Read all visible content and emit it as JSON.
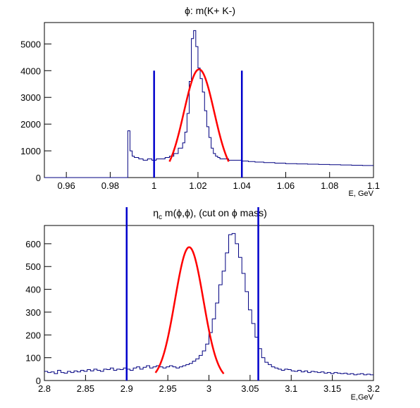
{
  "chart_data": [
    {
      "type": "histogram",
      "title": "ϕ: m(K+ K-)",
      "xlabel": "E, GeV",
      "ylabel": "",
      "xlim": [
        0.95,
        1.1
      ],
      "ylim": [
        0,
        5800
      ],
      "x_ticks": [
        0.96,
        0.98,
        1.0,
        1.02,
        1.04,
        1.06,
        1.08,
        1.1
      ],
      "x_tick_labels": [
        "0.96",
        "0.98",
        "1",
        "1.02",
        "1.04",
        "1.06",
        "1.08",
        "1.1"
      ],
      "y_ticks": [
        0,
        1000,
        2000,
        3000,
        4000,
        5000
      ],
      "y_tick_labels": [
        "0",
        "1000",
        "2000",
        "3000",
        "4000",
        "5000"
      ],
      "histogram_color": "#000080",
      "histogram": {
        "bin_edges": [
          0.95,
          0.988,
          0.989,
          0.99,
          0.991,
          0.993,
          0.995,
          0.997,
          0.999,
          1.001,
          1.003,
          1.005,
          1.007,
          1.009,
          1.011,
          1.013,
          1.014,
          1.015,
          1.016,
          1.017,
          1.018,
          1.019,
          1.02,
          1.021,
          1.022,
          1.023,
          1.024,
          1.025,
          1.026,
          1.027,
          1.028,
          1.029,
          1.03,
          1.032,
          1.034,
          1.036,
          1.038,
          1.04,
          1.043,
          1.046,
          1.05,
          1.055,
          1.06,
          1.065,
          1.07,
          1.075,
          1.08,
          1.085,
          1.09,
          1.095,
          1.1
        ],
        "counts": [
          0,
          1750,
          1000,
          800,
          750,
          700,
          650,
          700,
          650,
          700,
          700,
          750,
          800,
          900,
          1100,
          1300,
          1700,
          2400,
          3600,
          5200,
          5500,
          4900,
          4100,
          3700,
          3200,
          2500,
          1900,
          1500,
          1100,
          900,
          800,
          750,
          700,
          700,
          650,
          650,
          650,
          620,
          600,
          580,
          560,
          540,
          520,
          510,
          500,
          490,
          480,
          470,
          460,
          450
        ]
      },
      "fit": {
        "type": "gaussian",
        "color": "#ff0000",
        "amplitude": 4050,
        "mean": 1.0205,
        "sigma": 0.0069,
        "x_range": [
          1.007,
          1.034
        ]
      },
      "cut_lines": {
        "color": "#0000cc",
        "x": [
          1.0,
          1.04
        ],
        "y_top": 4000
      }
    },
    {
      "type": "histogram",
      "title_parts": {
        "eta": "η",
        "sub": "c",
        "rest": " m(ϕ,ϕ), (cut on ϕ mass)"
      },
      "xlabel": "E,GeV",
      "ylabel": "",
      "xlim": [
        2.8,
        3.2
      ],
      "ylim": [
        0,
        680
      ],
      "x_ticks": [
        2.8,
        2.85,
        2.9,
        2.95,
        3.0,
        3.05,
        3.1,
        3.15,
        3.2
      ],
      "x_tick_labels": [
        "2.8",
        "2.85",
        "2.9",
        "2.95",
        "3",
        "3.05",
        "3.1",
        "3.15",
        "3.2"
      ],
      "y_ticks": [
        0,
        100,
        200,
        300,
        400,
        500,
        600
      ],
      "y_tick_labels": [
        "0",
        "100",
        "200",
        "300",
        "400",
        "500",
        "600"
      ],
      "histogram_color": "#000080",
      "histogram": {
        "bin_start": 2.8,
        "bin_width": 0.004,
        "counts": [
          40,
          35,
          38,
          30,
          45,
          35,
          32,
          40,
          35,
          42,
          38,
          45,
          40,
          48,
          42,
          50,
          45,
          40,
          50,
          48,
          55,
          45,
          50,
          48,
          55,
          50,
          45,
          55,
          60,
          50,
          58,
          65,
          55,
          60,
          65,
          60,
          55,
          60,
          65,
          60,
          55,
          60,
          65,
          70,
          75,
          85,
          95,
          110,
          130,
          160,
          210,
          270,
          340,
          420,
          480,
          560,
          640,
          645,
          600,
          540,
          470,
          390,
          310,
          250,
          190,
          140,
          100,
          80,
          70,
          60,
          55,
          50,
          45,
          50,
          48,
          42,
          40,
          45,
          38,
          42,
          35,
          40,
          38,
          35,
          38,
          32,
          35,
          30,
          35,
          32,
          30,
          32,
          28,
          30,
          25,
          28,
          30,
          25,
          28,
          25
        ]
      },
      "fit": {
        "type": "gaussian",
        "color": "#ff0000",
        "amplitude": 585,
        "mean": 2.976,
        "sigma": 0.0172,
        "x_range": [
          2.935,
          3.018
        ]
      },
      "cut_lines": {
        "color": "#0000cc",
        "x": [
          2.9,
          3.06
        ],
        "y_top": 680
      }
    }
  ]
}
